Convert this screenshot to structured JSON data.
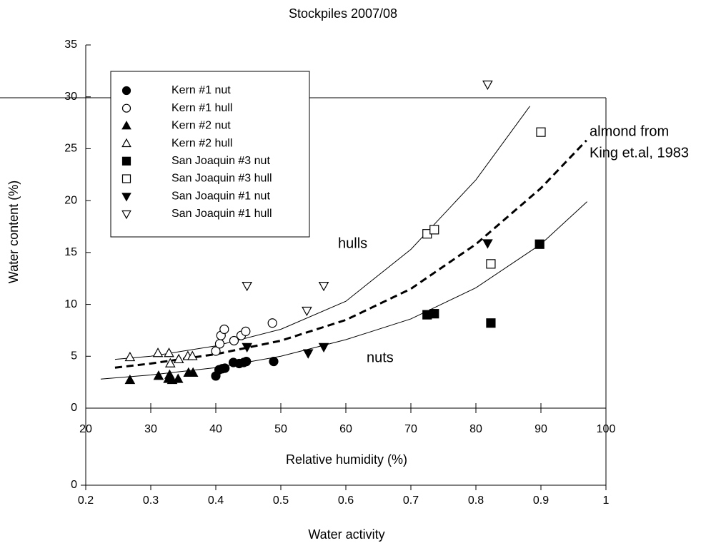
{
  "chart_data": [
    {
      "type": "scatter",
      "title": "Stockpiles 2007/08",
      "xlabel": "Relative humidity (%)",
      "ylabel": "Water content (%)",
      "xlim": [
        20,
        100
      ],
      "xticks": [
        20,
        30,
        40,
        50,
        60,
        70,
        80,
        90,
        100
      ],
      "ylim": [
        0,
        35
      ],
      "yticks": [
        0,
        5,
        10,
        15,
        20,
        25,
        30,
        35
      ],
      "annotations": [
        "hulls",
        "nuts",
        "almond from",
        "King et.al, 1983"
      ],
      "series": [
        {
          "name": "Kern #1 nut",
          "color": "#000000",
          "marker": "circle",
          "filled": true,
          "x": [
            40.0,
            40.5,
            41.0,
            41.4,
            42.7,
            43.6,
            44.3,
            44.7,
            48.9
          ],
          "values": [
            3.1,
            3.7,
            3.8,
            3.85,
            4.4,
            4.3,
            4.4,
            4.5,
            4.5
          ]
        },
        {
          "name": "Kern #1 hull",
          "color": "#000000",
          "marker": "circle",
          "filled": false,
          "x": [
            40.0,
            40.6,
            40.8,
            41.3,
            42.8,
            43.9,
            44.6,
            48.7
          ],
          "values": [
            5.5,
            6.2,
            7.0,
            7.6,
            6.5,
            7.0,
            7.4,
            8.2
          ]
        },
        {
          "name": "Kern #2 nut",
          "color": "#000000",
          "marker": "triangle-up",
          "filled": true,
          "x": [
            26.8,
            31.2,
            32.7,
            32.9,
            33.3,
            34.2,
            35.8,
            36.5
          ],
          "values": [
            2.7,
            3.1,
            2.8,
            3.2,
            2.7,
            2.8,
            3.4,
            3.4
          ]
        },
        {
          "name": "Kern #2 hull",
          "color": "#000000",
          "marker": "triangle-up",
          "filled": false,
          "x": [
            26.8,
            31.1,
            32.8,
            33.0,
            34.3,
            35.7,
            36.4
          ],
          "values": [
            4.9,
            5.3,
            5.3,
            4.3,
            4.7,
            5.0,
            5.0
          ]
        },
        {
          "name": "San Joaquin #3 nut",
          "color": "#000000",
          "marker": "square",
          "filled": true,
          "x": [
            72.5,
            73.6,
            82.3,
            89.8
          ],
          "values": [
            9.0,
            9.1,
            8.2,
            15.8
          ]
        },
        {
          "name": "San Joaquin #3 hull",
          "color": "#000000",
          "marker": "square",
          "filled": false,
          "x": [
            72.5,
            73.6,
            82.3,
            90.0
          ],
          "values": [
            16.8,
            17.2,
            13.9,
            26.6
          ]
        },
        {
          "name": "San Joaquin #1 nut",
          "color": "#000000",
          "marker": "triangle-down",
          "filled": true,
          "x": [
            44.8,
            54.2,
            56.6,
            81.8
          ],
          "values": [
            5.9,
            5.3,
            5.9,
            15.9
          ]
        },
        {
          "name": "San Joaquin #1 hull",
          "color": "#000000",
          "marker": "triangle-down",
          "filled": false,
          "x": [
            44.8,
            54.0,
            56.6,
            81.8
          ],
          "values": [
            11.8,
            9.4,
            11.8,
            31.2
          ]
        }
      ],
      "curves": [
        {
          "color": "#000000",
          "dashed": false,
          "x": [
            24.5,
            30,
            40,
            50,
            60,
            70,
            80,
            88.3
          ],
          "values": [
            4.7,
            5.0,
            6.0,
            7.6,
            10.3,
            15.3,
            22.0,
            29.1
          ]
        },
        {
          "color": "#000000",
          "dashed": false,
          "x": [
            22.3,
            30,
            40,
            50,
            60,
            70,
            80,
            90,
            97.1
          ],
          "values": [
            2.8,
            3.2,
            3.9,
            5.0,
            6.6,
            8.6,
            11.6,
            15.8,
            19.9
          ]
        },
        {
          "color": "#000000",
          "dashed": true,
          "x": [
            24.5,
            30,
            40,
            50,
            60,
            70,
            80,
            90,
            97
          ],
          "values": [
            3.9,
            4.3,
            5.2,
            6.5,
            8.5,
            11.5,
            15.8,
            21.2,
            25.8
          ]
        }
      ]
    },
    {
      "type": "axis",
      "xlabel": "Water activity",
      "xlim": [
        0.2,
        1.0
      ],
      "xticks": [
        0.2,
        0.3,
        0.4,
        0.5,
        0.6,
        0.7,
        0.8,
        0.9,
        1.0
      ],
      "yticks": [
        0
      ]
    }
  ]
}
